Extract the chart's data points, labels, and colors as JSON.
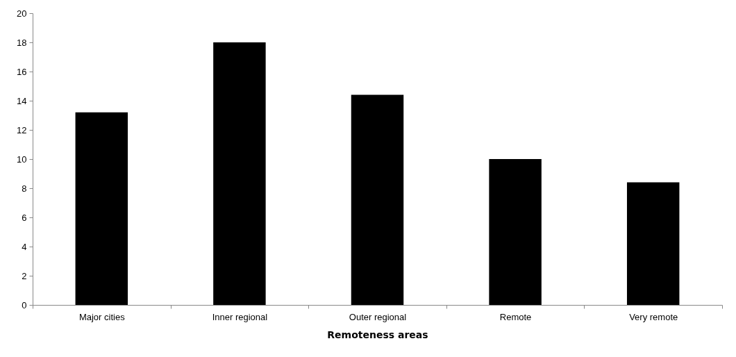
{
  "chart_data": {
    "type": "bar",
    "xlabel": "Remoteness areas",
    "categories": [
      "Major cities",
      "Inner regional",
      "Outer regional",
      "Remote",
      "Very remote"
    ],
    "values": [
      13.2,
      18.0,
      14.4,
      10.0,
      8.4
    ],
    "color": "#000000",
    "ylim": [
      0,
      20
    ],
    "yticks": [
      0,
      2,
      4,
      6,
      8,
      10,
      12,
      14,
      16,
      18,
      20
    ],
    "grid": false
  }
}
